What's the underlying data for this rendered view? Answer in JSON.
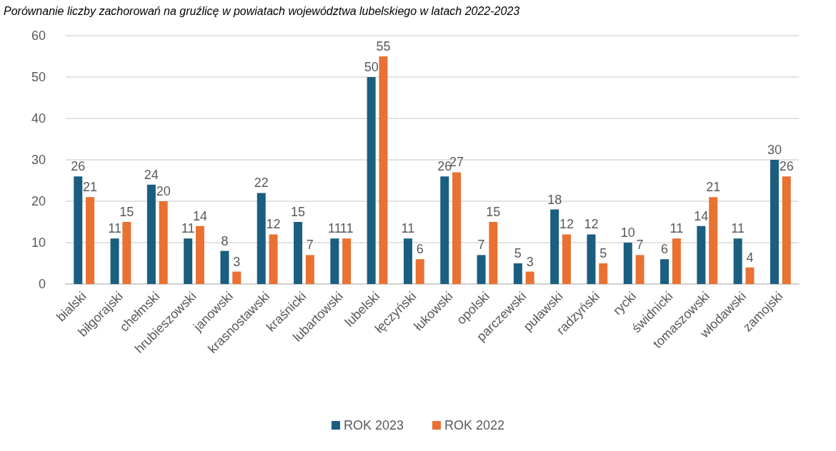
{
  "chart_data": {
    "type": "bar",
    "title": "Porównanie liczby zachorowań na gruźlicę w powiatach województwa lubelskiego w latach 2022-2023",
    "categories": [
      "bialski",
      "biłgorajski",
      "chełmski",
      "hrubieszowski",
      "janowski",
      "krasnostawski",
      "kraśnicki",
      "lubartowski",
      "lubelski",
      "łęczyński",
      "łukowski",
      "opolski",
      "parczewski",
      "puławski",
      "radzyński",
      "rycki",
      "świdnicki",
      "tomaszowski",
      "włodawski",
      "zamojski"
    ],
    "series": [
      {
        "name": "ROK 2023",
        "color": "#1a5e80",
        "values": [
          26,
          11,
          24,
          11,
          8,
          22,
          15,
          11,
          50,
          11,
          26,
          7,
          5,
          18,
          12,
          10,
          6,
          14,
          11,
          30
        ]
      },
      {
        "name": "ROK 2022",
        "color": "#e97132",
        "values": [
          21,
          15,
          20,
          14,
          3,
          12,
          7,
          11,
          55,
          6,
          27,
          15,
          3,
          12,
          5,
          7,
          11,
          21,
          4,
          26
        ]
      }
    ],
    "ylim": [
      0,
      60
    ],
    "yticks": [
      0,
      10,
      20,
      30,
      40,
      50,
      60
    ],
    "grid": "y",
    "legend": "bottom",
    "data_labels": true
  }
}
